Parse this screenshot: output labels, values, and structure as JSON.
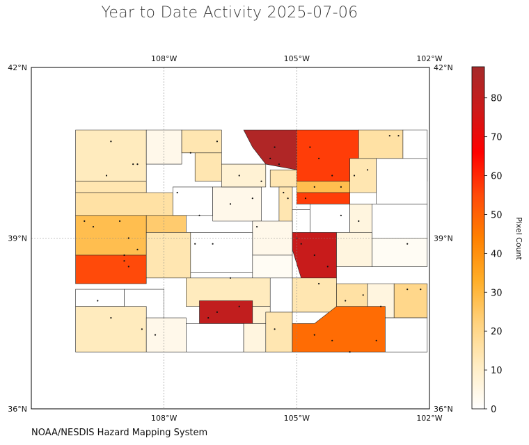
{
  "title": "Year to Date Activity 2025-07-06",
  "credit": "NOAA/NESDIS Hazard Mapping System",
  "map": {
    "lon_range": [
      -111.0,
      -102.0
    ],
    "lat_range": [
      36.0,
      42.0
    ],
    "lon_ticks": [
      {
        "value": -108,
        "label": "108°W"
      },
      {
        "value": -105,
        "label": "105°W"
      },
      {
        "value": -102,
        "label": "102°W"
      }
    ],
    "lat_ticks": [
      {
        "value": 42,
        "label": "42°N"
      },
      {
        "value": 39,
        "label": "39°N"
      },
      {
        "value": 36,
        "label": "36°N"
      }
    ],
    "gridlines": true
  },
  "colorbar": {
    "label": "Pixel Count",
    "min": 0,
    "max": 88,
    "ticks": [
      0,
      10,
      20,
      30,
      40,
      50,
      60,
      70,
      80
    ],
    "colors": [
      "#ffffff",
      "#ffedc4",
      "#ffd27e",
      "#ffae28",
      "#ff8000",
      "#ff4a0a",
      "#ff0000",
      "#cc1a1a",
      "#a52a2a"
    ]
  },
  "counties": [
    {
      "c": 12,
      "pts": [
        [
          -110.0,
          40.0
        ],
        [
          -108.4,
          40.0
        ],
        [
          -108.4,
          40.9
        ],
        [
          -110.0,
          40.9
        ]
      ]
    },
    {
      "c": 4,
      "pts": [
        [
          -108.4,
          40.3
        ],
        [
          -107.6,
          40.3
        ],
        [
          -107.6,
          40.9
        ],
        [
          -108.4,
          40.9
        ]
      ]
    },
    {
      "c": 14,
      "pts": [
        [
          -107.6,
          40.5
        ],
        [
          -106.7,
          40.5
        ],
        [
          -106.7,
          40.9
        ],
        [
          -107.6,
          40.9
        ]
      ]
    },
    {
      "c": 14,
      "pts": [
        [
          -107.3,
          40.0
        ],
        [
          -106.7,
          40.0
        ],
        [
          -106.7,
          40.5
        ],
        [
          -107.3,
          40.5
        ]
      ]
    },
    {
      "c": 85,
      "pts": [
        [
          -106.2,
          40.9
        ],
        [
          -105.0,
          40.9
        ],
        [
          -105.0,
          40.2
        ],
        [
          -105.7,
          40.3
        ],
        [
          -106.0,
          40.6
        ]
      ]
    },
    {
      "c": 57,
      "pts": [
        [
          -105.0,
          40.9
        ],
        [
          -103.6,
          40.9
        ],
        [
          -103.6,
          40.4
        ],
        [
          -103.8,
          40.4
        ],
        [
          -103.8,
          39.9
        ],
        [
          -105.0,
          39.9
        ]
      ]
    },
    {
      "c": 16,
      "pts": [
        [
          -103.6,
          40.9
        ],
        [
          -102.6,
          40.9
        ],
        [
          -102.6,
          40.4
        ],
        [
          -103.6,
          40.4
        ]
      ]
    },
    {
      "c": 0,
      "pts": [
        [
          -102.6,
          40.9
        ],
        [
          -102.05,
          40.9
        ],
        [
          -102.05,
          40.0
        ],
        [
          -102.6,
          40.0
        ]
      ]
    },
    {
      "c": 14,
      "pts": [
        [
          -103.8,
          40.4
        ],
        [
          -103.2,
          40.4
        ],
        [
          -103.2,
          39.8
        ],
        [
          -103.8,
          39.8
        ]
      ]
    },
    {
      "c": 0,
      "pts": [
        [
          -103.2,
          40.4
        ],
        [
          -102.05,
          40.4
        ],
        [
          -102.05,
          39.6
        ],
        [
          -103.2,
          39.6
        ]
      ]
    },
    {
      "c": 14,
      "pts": [
        [
          -110.0,
          39.8
        ],
        [
          -108.4,
          39.8
        ],
        [
          -108.4,
          40.0
        ],
        [
          -110.0,
          40.0
        ]
      ]
    },
    {
      "c": 16,
      "pts": [
        [
          -110.0,
          39.4
        ],
        [
          -107.8,
          39.4
        ],
        [
          -107.8,
          39.8
        ],
        [
          -110.0,
          39.8
        ]
      ]
    },
    {
      "c": 28,
      "pts": [
        [
          -110.0,
          38.7
        ],
        [
          -108.4,
          38.7
        ],
        [
          -108.4,
          39.4
        ],
        [
          -110.0,
          39.4
        ]
      ]
    },
    {
      "c": 24,
      "pts": [
        [
          -108.4,
          39.1
        ],
        [
          -107.5,
          39.1
        ],
        [
          -107.5,
          39.4
        ],
        [
          -108.4,
          39.4
        ]
      ]
    },
    {
      "c": 0,
      "pts": [
        [
          -107.8,
          39.4
        ],
        [
          -106.9,
          39.4
        ],
        [
          -106.9,
          39.9
        ],
        [
          -107.8,
          39.9
        ]
      ]
    },
    {
      "c": 4,
      "pts": [
        [
          -106.9,
          39.3
        ],
        [
          -105.8,
          39.3
        ],
        [
          -105.8,
          39.9
        ],
        [
          -106.9,
          39.9
        ]
      ]
    },
    {
      "c": 8,
      "pts": [
        [
          -106.7,
          39.9
        ],
        [
          -105.7,
          39.9
        ],
        [
          -105.7,
          40.3
        ],
        [
          -106.7,
          40.3
        ]
      ]
    },
    {
      "c": 14,
      "pts": [
        [
          -105.6,
          39.9
        ],
        [
          -105.0,
          39.9
        ],
        [
          -105.0,
          40.2
        ],
        [
          -105.6,
          40.2
        ]
      ]
    },
    {
      "c": 28,
      "pts": [
        [
          -105.0,
          39.8
        ],
        [
          -103.8,
          39.8
        ],
        [
          -103.8,
          40.0
        ],
        [
          -105.0,
          40.0
        ]
      ]
    },
    {
      "c": 57,
      "pts": [
        [
          -105.0,
          39.6
        ],
        [
          -103.8,
          39.6
        ],
        [
          -103.8,
          39.8
        ],
        [
          -105.0,
          39.8
        ]
      ]
    },
    {
      "c": 14,
      "pts": [
        [
          -105.4,
          39.9
        ],
        [
          -105.1,
          39.9
        ],
        [
          -105.1,
          39.2
        ],
        [
          -105.4,
          39.2
        ]
      ]
    },
    {
      "c": 0,
      "pts": [
        [
          -105.1,
          39.5
        ],
        [
          -104.7,
          39.5
        ],
        [
          -104.7,
          39.0
        ],
        [
          -105.1,
          39.0
        ]
      ]
    },
    {
      "c": 0,
      "pts": [
        [
          -104.7,
          39.6
        ],
        [
          -103.8,
          39.6
        ],
        [
          -103.8,
          39.1
        ],
        [
          -104.7,
          39.1
        ]
      ]
    },
    {
      "c": 6,
      "pts": [
        [
          -103.8,
          39.6
        ],
        [
          -103.3,
          39.6
        ],
        [
          -103.3,
          38.9
        ],
        [
          -103.8,
          38.9
        ]
      ]
    },
    {
      "c": 0,
      "pts": [
        [
          -103.3,
          39.6
        ],
        [
          -102.05,
          39.6
        ],
        [
          -102.05,
          39.0
        ],
        [
          -103.3,
          39.0
        ]
      ]
    },
    {
      "c": 2,
      "pts": [
        [
          -103.3,
          39.0
        ],
        [
          -102.05,
          39.0
        ],
        [
          -102.05,
          38.5
        ],
        [
          -103.3,
          38.5
        ]
      ]
    },
    {
      "c": 78,
      "pts": [
        [
          -105.1,
          39.1
        ],
        [
          -104.1,
          39.1
        ],
        [
          -104.1,
          38.3
        ],
        [
          -104.9,
          38.3
        ],
        [
          -105.1,
          38.8
        ]
      ]
    },
    {
      "c": 6,
      "pts": [
        [
          -104.1,
          39.1
        ],
        [
          -103.3,
          39.1
        ],
        [
          -103.3,
          38.5
        ],
        [
          -104.1,
          38.5
        ]
      ]
    },
    {
      "c": 4,
      "pts": [
        [
          -106.0,
          39.3
        ],
        [
          -105.1,
          39.3
        ],
        [
          -105.1,
          38.7
        ],
        [
          -106.0,
          38.7
        ]
      ]
    },
    {
      "c": 14,
      "pts": [
        [
          -108.4,
          39.1
        ],
        [
          -107.4,
          39.1
        ],
        [
          -107.4,
          38.3
        ],
        [
          -108.4,
          38.3
        ]
      ]
    },
    {
      "c": 0,
      "pts": [
        [
          -107.4,
          39.1
        ],
        [
          -106.0,
          39.1
        ],
        [
          -106.0,
          38.4
        ],
        [
          -107.4,
          38.4
        ]
      ]
    },
    {
      "c": 2,
      "pts": [
        [
          -106.0,
          38.7
        ],
        [
          -105.1,
          38.7
        ],
        [
          -105.1,
          38.3
        ],
        [
          -106.0,
          38.3
        ]
      ]
    },
    {
      "c": 55,
      "pts": [
        [
          -110.0,
          38.2
        ],
        [
          -108.4,
          38.2
        ],
        [
          -108.4,
          38.7
        ],
        [
          -110.0,
          38.7
        ]
      ]
    },
    {
      "c": 0,
      "pts": [
        [
          -110.0,
          37.8
        ],
        [
          -108.9,
          37.8
        ],
        [
          -108.9,
          38.1
        ],
        [
          -110.0,
          38.1
        ]
      ]
    },
    {
      "c": 0,
      "pts": [
        [
          -108.9,
          38.1
        ],
        [
          -108.0,
          38.1
        ],
        [
          -108.0,
          37.5
        ],
        [
          -108.9,
          37.5
        ]
      ]
    },
    {
      "c": 12,
      "pts": [
        [
          -107.5,
          38.3
        ],
        [
          -105.6,
          38.3
        ],
        [
          -105.6,
          37.8
        ],
        [
          -107.5,
          37.8
        ]
      ]
    },
    {
      "c": 14,
      "pts": [
        [
          -105.1,
          38.3
        ],
        [
          -104.1,
          38.3
        ],
        [
          -104.1,
          37.7
        ],
        [
          -105.1,
          37.7
        ]
      ]
    },
    {
      "c": 16,
      "pts": [
        [
          -104.1,
          38.2
        ],
        [
          -103.4,
          38.2
        ],
        [
          -103.4,
          37.6
        ],
        [
          -104.1,
          37.6
        ]
      ]
    },
    {
      "c": 6,
      "pts": [
        [
          -103.4,
          38.2
        ],
        [
          -102.8,
          38.2
        ],
        [
          -102.8,
          37.6
        ],
        [
          -103.4,
          37.6
        ]
      ]
    },
    {
      "c": 20,
      "pts": [
        [
          -102.8,
          38.2
        ],
        [
          -102.05,
          38.2
        ],
        [
          -102.05,
          37.6
        ],
        [
          -102.8,
          37.6
        ]
      ]
    },
    {
      "c": 12,
      "pts": [
        [
          -110.0,
          37.0
        ],
        [
          -108.4,
          37.0
        ],
        [
          -108.4,
          37.8
        ],
        [
          -110.0,
          37.8
        ]
      ]
    },
    {
      "c": 4,
      "pts": [
        [
          -108.4,
          37.0
        ],
        [
          -107.5,
          37.0
        ],
        [
          -107.5,
          37.6
        ],
        [
          -108.4,
          37.6
        ]
      ]
    },
    {
      "c": 0,
      "pts": [
        [
          -107.5,
          37.0
        ],
        [
          -106.2,
          37.0
        ],
        [
          -106.2,
          37.5
        ],
        [
          -107.5,
          37.5
        ]
      ]
    },
    {
      "c": 80,
      "pts": [
        [
          -107.2,
          37.5
        ],
        [
          -106.0,
          37.5
        ],
        [
          -106.0,
          37.9
        ],
        [
          -107.2,
          37.9
        ]
      ]
    },
    {
      "c": 6,
      "pts": [
        [
          -106.2,
          37.0
        ],
        [
          -105.6,
          37.0
        ],
        [
          -105.6,
          37.5
        ],
        [
          -106.2,
          37.5
        ]
      ]
    },
    {
      "c": 8,
      "pts": [
        [
          -106.0,
          37.5
        ],
        [
          -105.6,
          37.5
        ],
        [
          -105.6,
          37.8
        ],
        [
          -106.0,
          37.8
        ]
      ]
    },
    {
      "c": 14,
      "pts": [
        [
          -105.7,
          37.0
        ],
        [
          -105.1,
          37.0
        ],
        [
          -105.1,
          37.7
        ],
        [
          -105.7,
          37.7
        ]
      ]
    },
    {
      "c": 48,
      "pts": [
        [
          -105.1,
          37.0
        ],
        [
          -103.0,
          37.0
        ],
        [
          -103.0,
          37.8
        ],
        [
          -104.1,
          37.8
        ],
        [
          -104.6,
          37.5
        ],
        [
          -105.1,
          37.5
        ]
      ]
    },
    {
      "c": 0,
      "pts": [
        [
          -103.0,
          37.0
        ],
        [
          -102.05,
          37.0
        ],
        [
          -102.05,
          37.6
        ],
        [
          -103.0,
          37.6
        ]
      ]
    }
  ],
  "points": [
    [
      -109.2,
      40.7
    ],
    [
      -108.7,
      40.3
    ],
    [
      -107.4,
      40.5
    ],
    [
      -106.8,
      40.7
    ],
    [
      -106.3,
      40.1
    ],
    [
      -105.6,
      40.4
    ],
    [
      -105.5,
      40.6
    ],
    [
      -105.4,
      40.3
    ],
    [
      -104.7,
      40.6
    ],
    [
      -104.5,
      40.4
    ],
    [
      -104.2,
      40.1
    ],
    [
      -104.0,
      39.9
    ],
    [
      -104.8,
      39.7
    ],
    [
      -105.2,
      39.7
    ],
    [
      -105.3,
      39.8
    ],
    [
      -104.6,
      39.9
    ],
    [
      -103.7,
      40.1
    ],
    [
      -103.4,
      40.2
    ],
    [
      -102.9,
      40.8
    ],
    [
      -102.7,
      40.8
    ],
    [
      -109.8,
      39.3
    ],
    [
      -109.6,
      39.2
    ],
    [
      -109.0,
      39.3
    ],
    [
      -108.8,
      39.0
    ],
    [
      -108.9,
      38.6
    ],
    [
      -108.8,
      38.5
    ],
    [
      -108.9,
      38.7
    ],
    [
      -108.6,
      38.8
    ],
    [
      -109.3,
      40.1
    ],
    [
      -108.6,
      40.3
    ],
    [
      -107.7,
      39.8
    ],
    [
      -107.2,
      39.4
    ],
    [
      -106.9,
      38.9
    ],
    [
      -107.3,
      38.9
    ],
    [
      -106.5,
      39.6
    ],
    [
      -105.9,
      39.2
    ],
    [
      -105.0,
      39.0
    ],
    [
      -104.9,
      38.9
    ],
    [
      -104.6,
      38.7
    ],
    [
      -104.3,
      38.5
    ],
    [
      -104.5,
      38.2
    ],
    [
      -103.9,
      37.9
    ],
    [
      -103.5,
      38.0
    ],
    [
      -103.1,
      37.8
    ],
    [
      -102.5,
      38.1
    ],
    [
      -102.2,
      38.1
    ],
    [
      -109.5,
      37.9
    ],
    [
      -109.2,
      37.6
    ],
    [
      -108.5,
      37.4
    ],
    [
      -108.2,
      37.3
    ],
    [
      -107.0,
      37.6
    ],
    [
      -106.8,
      37.7
    ],
    [
      -106.3,
      37.8
    ],
    [
      -105.5,
      37.4
    ],
    [
      -104.6,
      37.3
    ],
    [
      -104.2,
      37.2
    ],
    [
      -103.8,
      37.0
    ],
    [
      -103.2,
      37.2
    ],
    [
      -106.0,
      39.7
    ],
    [
      -105.8,
      40.0
    ],
    [
      -104.0,
      39.4
    ],
    [
      -103.6,
      39.3
    ],
    [
      -102.5,
      38.9
    ],
    [
      -106.5,
      38.3
    ]
  ]
}
